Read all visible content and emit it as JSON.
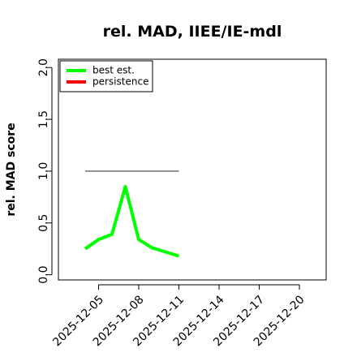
{
  "chart_data": {
    "type": "line",
    "title": "rel. MAD, IIEE/IE-mdl",
    "y_label": "rel. MAD score",
    "x": [
      "2025-12-04",
      "2025-12-05",
      "2025-12-06",
      "2025-12-07",
      "2025-12-08",
      "2025-12-09",
      "2025-12-10",
      "2025-12-11"
    ],
    "series": [
      {
        "name": "best est.",
        "color": "#00ff00",
        "values": [
          0.25,
          0.34,
          0.39,
          0.85,
          0.34,
          0.26,
          0.22,
          0.18
        ]
      },
      {
        "name": "persistence",
        "color": "#ff0000",
        "values": [
          null,
          null,
          null,
          null,
          null,
          null,
          null,
          null
        ]
      }
    ],
    "hlines": [
      {
        "y": 1.0,
        "from": "2025-12-04",
        "to": "2025-12-11",
        "color": "#666666"
      }
    ],
    "xlim": [
      "2025-12-02",
      "2025-12-22"
    ],
    "xticks": [
      "2025-12-05",
      "2025-12-08",
      "2025-12-11",
      "2025-12-14",
      "2025-12-17",
      "2025-12-20"
    ],
    "ylim": [
      -0.05,
      2.08
    ],
    "yticks": [
      {
        "value": 0,
        "label": "0.0"
      },
      {
        "value": 0.5,
        "label": "0.5"
      },
      {
        "value": 1,
        "label": "1.0"
      },
      {
        "value": 1.5,
        "label": "1.5"
      },
      {
        "value": 2,
        "label": "2.0"
      }
    ],
    "legend": "top-left"
  }
}
